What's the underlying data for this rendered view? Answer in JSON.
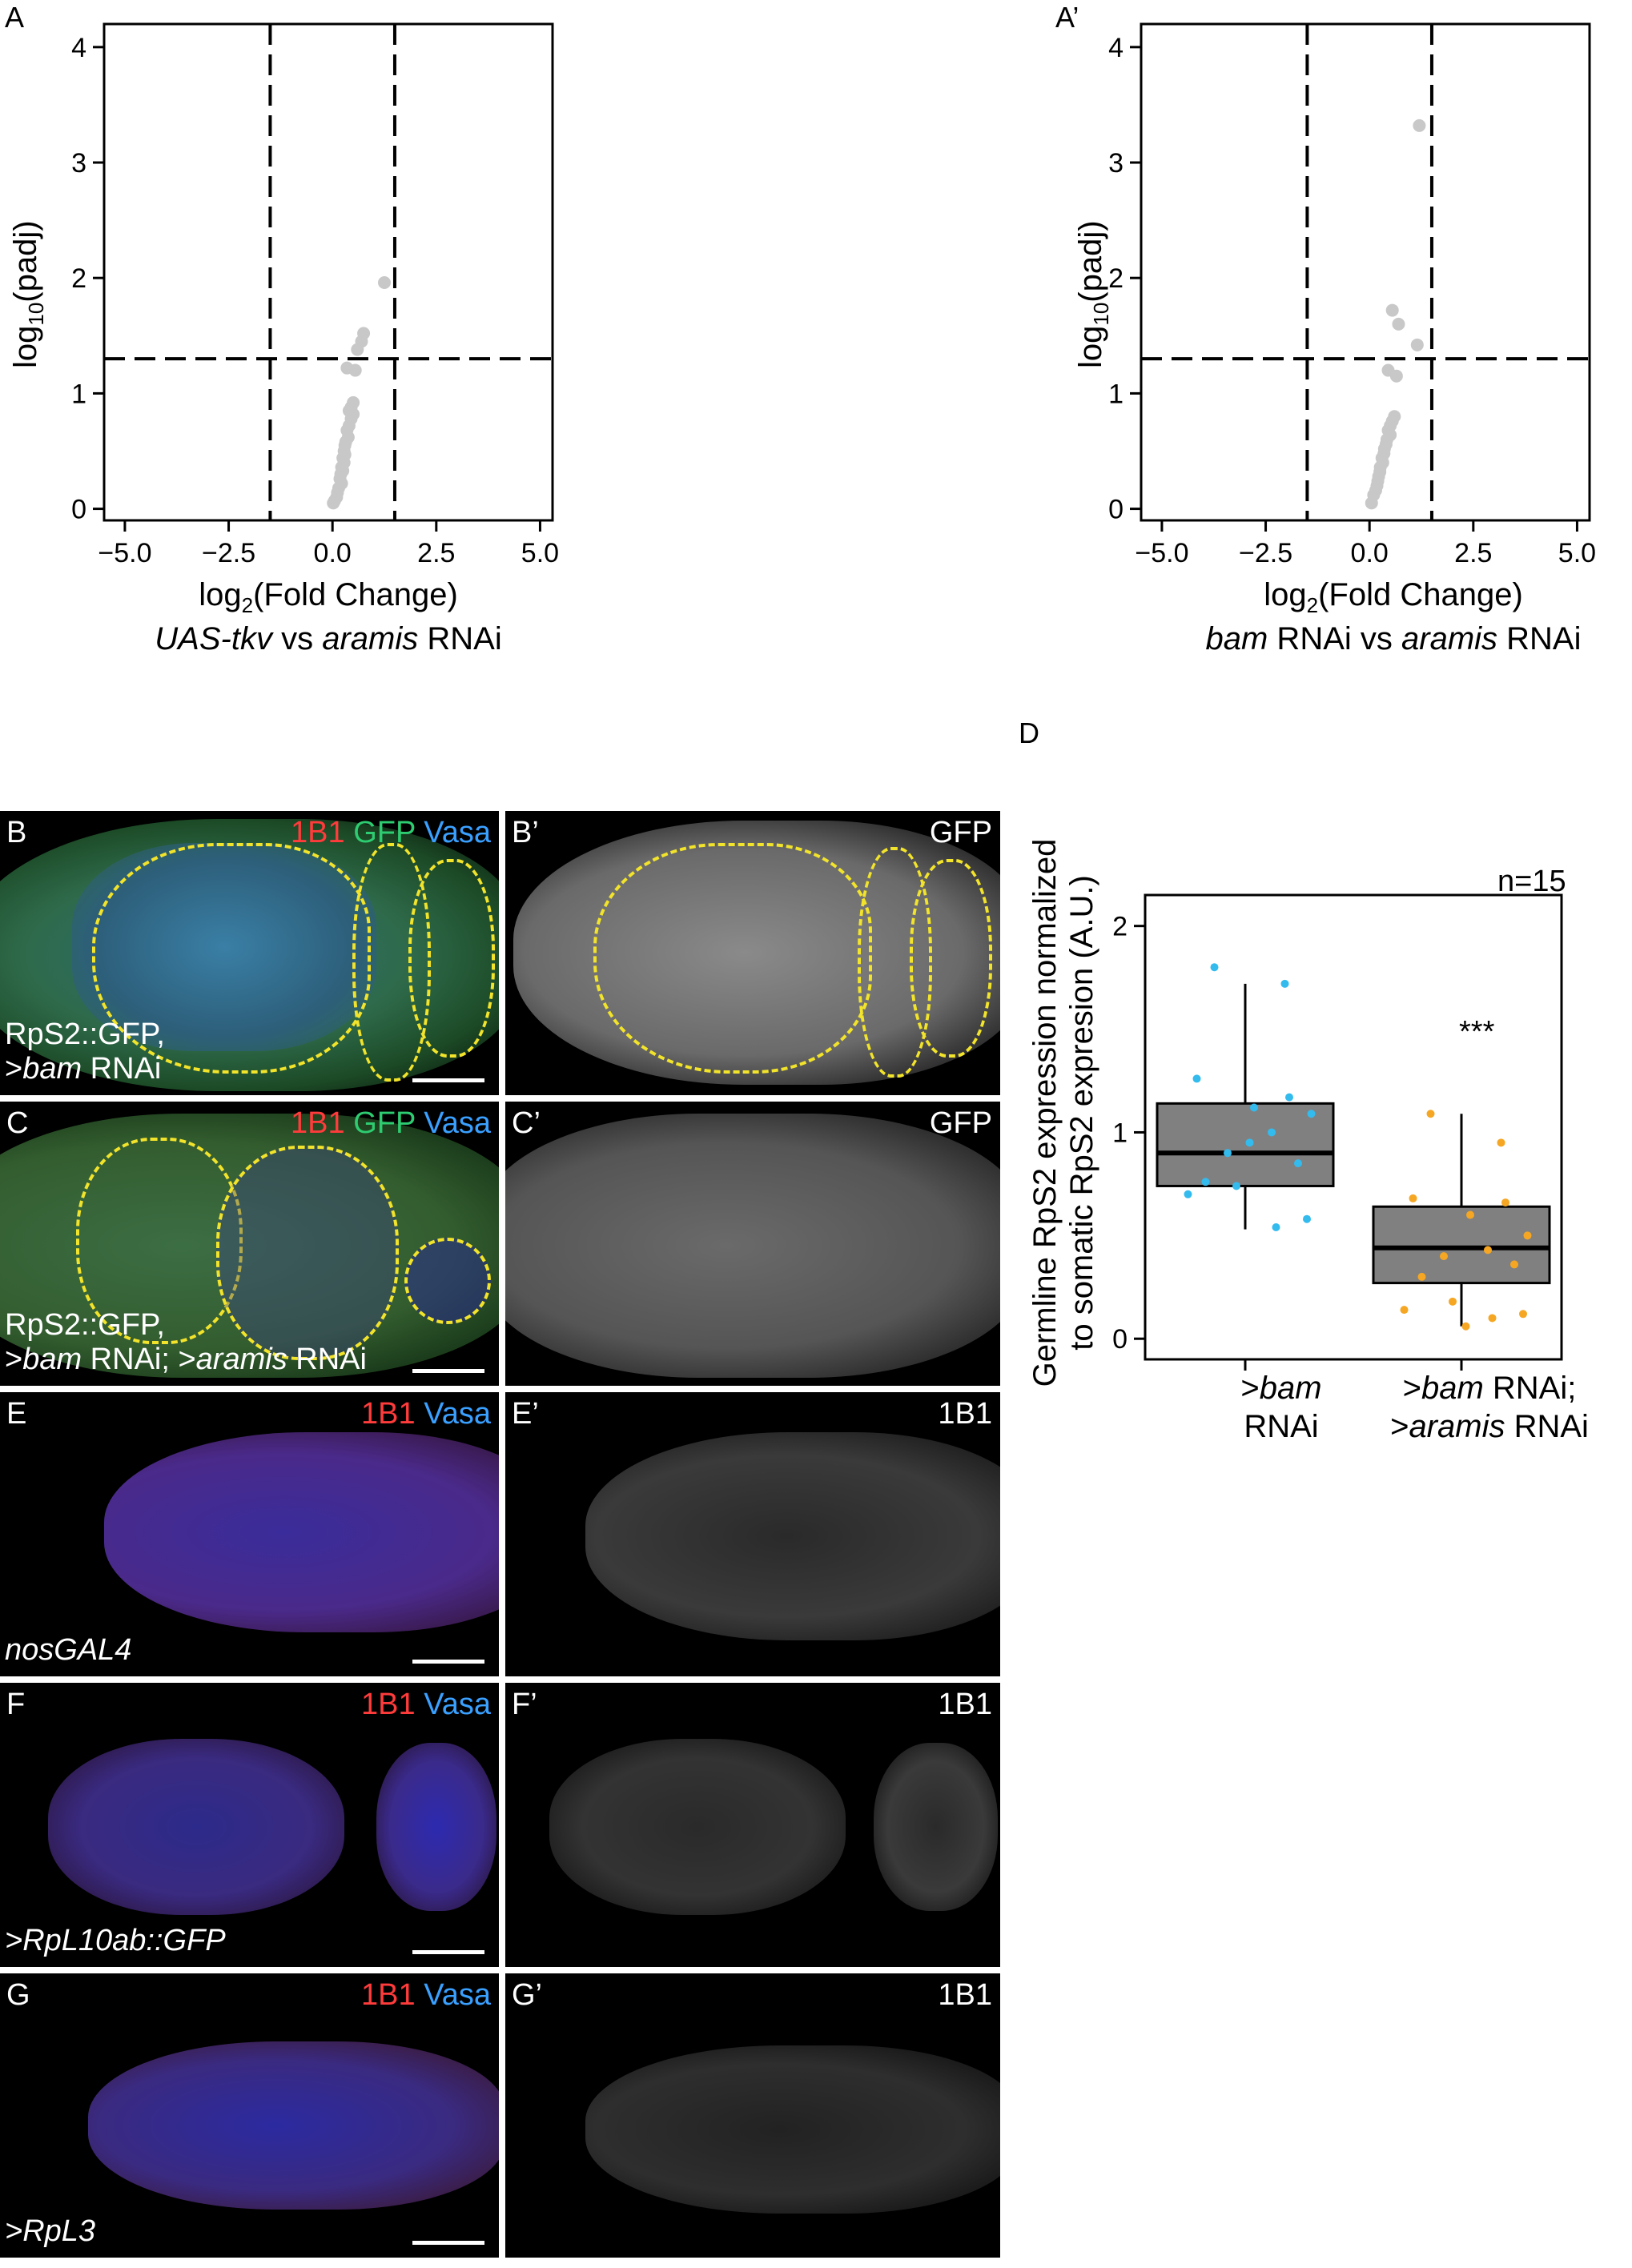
{
  "labels": {
    "A": "A",
    "A2": "A’",
    "B": "B",
    "B2": "B’",
    "C": "C",
    "C2": "C’",
    "D": "D",
    "E": "E",
    "E2": "E’",
    "F": "F",
    "F2": "F’",
    "G": "G",
    "G2": "G’"
  },
  "volcano_left": {
    "ylabel_base": "log",
    "ylabel_sub": "10",
    "ylabel_rest": "(padj)",
    "xlabel_base": "log",
    "xlabel_sub": "2",
    "xlabel_rest": "(Fold Change)",
    "comparison_a": "UAS-tkv",
    "comparison_b": " vs ",
    "comparison_c": "aramis",
    "comparison_d": " RNAi"
  },
  "volcano_right": {
    "ylabel_base": "log",
    "ylabel_sub": "10",
    "ylabel_rest": "(padj)",
    "xlabel_base": "log",
    "xlabel_sub": "2",
    "xlabel_rest": "(Fold Change)",
    "comparison_a": "bam",
    "comparison_b": " RNAi vs ",
    "comparison_c": "aramis",
    "comparison_d": " RNAi"
  },
  "micro": {
    "B": {
      "c1": "1B1",
      "c2": "GFP",
      "c3": "Vasa",
      "geno1": "RpS2::GFP,",
      "geno2a": ">",
      "geno2b": "bam",
      "geno2c": " RNAi"
    },
    "B2": {
      "ch": "GFP"
    },
    "C": {
      "c1": "1B1",
      "c2": "GFP",
      "c3": "Vasa",
      "geno1": "RpS2::GFP,",
      "geno2a": ">",
      "geno2b": "bam",
      "geno2c": " RNAi; >",
      "geno2d": "aramis",
      "geno2e": " RNAi"
    },
    "C2": {
      "ch": "GFP"
    },
    "E": {
      "c1": "1B1",
      "c3": "Vasa",
      "geno": "nosGAL4"
    },
    "E2": {
      "ch": "1B1"
    },
    "F": {
      "c1": "1B1",
      "c3": "Vasa",
      "geno": ">RpL10ab::GFP"
    },
    "F2": {
      "ch": "1B1"
    },
    "G": {
      "c1": "1B1",
      "c3": "Vasa",
      "geno": ">RpL3"
    },
    "G2": {
      "ch": "1B1"
    }
  },
  "boxplot": {
    "ylabel1": "Germline RpS2 expression normalized",
    "ylabel2": "to somatic RpS2 expresion (A.U.)",
    "n_label": "n=15",
    "sig": "***",
    "cat1_a": ">",
    "cat1_b": "bam",
    "cat1_c": "RNAi",
    "cat2_a": ">",
    "cat2_b": "bam",
    "cat2_c": " RNAi;",
    "cat2_d": ">",
    "cat2_e": "aramis",
    "cat2_f": " RNAi"
  },
  "colors": {
    "gray_points": "#c8c8c8",
    "blue_points": "#33bbee",
    "orange_points": "#f5a623",
    "box_fill": "#808080",
    "outline_yellow": "#f2e32b"
  },
  "chart_data": [
    {
      "type": "scatter",
      "xlim": [
        -5.5,
        5.3
      ],
      "ylim": [
        -0.1,
        4.2
      ],
      "xticks": [
        -5.0,
        -2.5,
        0.0,
        2.5,
        5.0
      ],
      "xtick_labels": [
        "−5.0",
        "−2.5",
        "0.0",
        "2.5",
        "5.0"
      ],
      "yticks": [
        0,
        1,
        2,
        3,
        4
      ],
      "vlines": [
        -1.5,
        1.5
      ],
      "hline": 1.3,
      "points": [
        [
          1.25,
          1.96
        ],
        [
          0.75,
          1.52
        ],
        [
          0.7,
          1.45
        ],
        [
          0.6,
          1.38
        ],
        [
          0.35,
          1.22
        ],
        [
          0.55,
          1.2
        ],
        [
          0.5,
          0.92
        ],
        [
          0.45,
          0.88
        ],
        [
          0.4,
          0.85
        ],
        [
          0.5,
          0.82
        ],
        [
          0.45,
          0.78
        ],
        [
          0.4,
          0.72
        ],
        [
          0.35,
          0.68
        ],
        [
          0.38,
          0.62
        ],
        [
          0.32,
          0.58
        ],
        [
          0.3,
          0.55
        ],
        [
          0.28,
          0.5
        ],
        [
          0.3,
          0.47
        ],
        [
          0.25,
          0.44
        ],
        [
          0.28,
          0.4
        ],
        [
          0.22,
          0.36
        ],
        [
          0.25,
          0.33
        ],
        [
          0.2,
          0.3
        ],
        [
          0.18,
          0.26
        ],
        [
          0.22,
          0.22
        ],
        [
          0.15,
          0.18
        ],
        [
          0.12,
          0.14
        ],
        [
          0.1,
          0.1
        ],
        [
          0.05,
          0.07
        ],
        [
          0.02,
          0.05
        ]
      ]
    },
    {
      "type": "scatter",
      "xlim": [
        -5.5,
        5.3
      ],
      "ylim": [
        -0.1,
        4.2
      ],
      "xticks": [
        -5.0,
        -2.5,
        0.0,
        2.5,
        5.0
      ],
      "xtick_labels": [
        "−5.0",
        "−2.5",
        "0.0",
        "2.5",
        "5.0"
      ],
      "yticks": [
        0,
        1,
        2,
        3,
        4
      ],
      "vlines": [
        -1.5,
        1.5
      ],
      "hline": 1.3,
      "points": [
        [
          1.2,
          3.32
        ],
        [
          0.55,
          1.72
        ],
        [
          0.7,
          1.6
        ],
        [
          1.15,
          1.42
        ],
        [
          0.45,
          1.2
        ],
        [
          0.65,
          1.15
        ],
        [
          0.6,
          0.8
        ],
        [
          0.55,
          0.76
        ],
        [
          0.5,
          0.72
        ],
        [
          0.45,
          0.68
        ],
        [
          0.5,
          0.64
        ],
        [
          0.42,
          0.6
        ],
        [
          0.4,
          0.56
        ],
        [
          0.36,
          0.52
        ],
        [
          0.35,
          0.48
        ],
        [
          0.3,
          0.44
        ],
        [
          0.32,
          0.4
        ],
        [
          0.26,
          0.36
        ],
        [
          0.25,
          0.32
        ],
        [
          0.22,
          0.28
        ],
        [
          0.2,
          0.24
        ],
        [
          0.18,
          0.2
        ],
        [
          0.15,
          0.16
        ],
        [
          0.1,
          0.12
        ],
        [
          0.05,
          0.05
        ]
      ]
    },
    {
      "type": "box",
      "ylim": [
        -0.1,
        2.15
      ],
      "yticks": [
        0,
        1,
        2
      ],
      "boxes": [
        {
          "q1": 0.74,
          "median": 0.9,
          "q3": 1.14,
          "whisker_low": 0.53,
          "whisker_high": 1.72,
          "points": [
            1.8,
            1.72,
            1.26,
            1.17,
            1.12,
            1.09,
            1.0,
            0.9,
            0.85,
            0.76,
            0.74,
            0.7,
            0.58,
            0.54,
            0.95
          ]
        },
        {
          "q1": 0.27,
          "median": 0.44,
          "q3": 0.64,
          "whisker_low": 0.06,
          "whisker_high": 1.09,
          "points": [
            1.09,
            0.95,
            0.68,
            0.66,
            0.6,
            0.5,
            0.43,
            0.4,
            0.36,
            0.3,
            0.18,
            0.14,
            0.12,
            0.1,
            0.06
          ]
        }
      ]
    }
  ]
}
